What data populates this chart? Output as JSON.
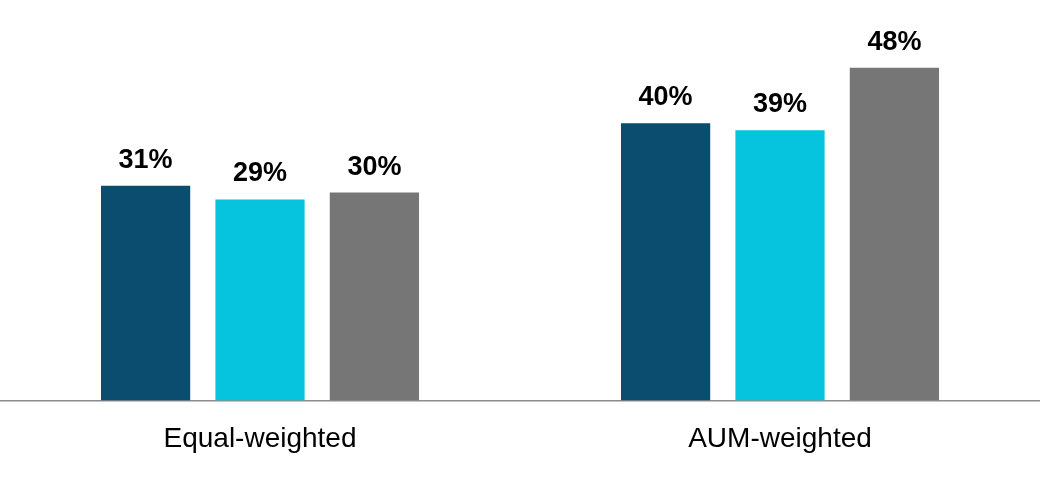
{
  "chart_data": {
    "type": "bar",
    "categories": [
      "Equal-weighted",
      "AUM-weighted"
    ],
    "series": [
      {
        "color": "#0a4d6e",
        "values": [
          31,
          40
        ],
        "value_labels": [
          "31%",
          "40%"
        ]
      },
      {
        "color": "#06c3de",
        "values": [
          29,
          39
        ],
        "value_labels": [
          "29%",
          "39%"
        ]
      },
      {
        "color": "#767676",
        "values": [
          30,
          48
        ],
        "value_labels": [
          "30%",
          "48%"
        ]
      }
    ],
    "grid": false,
    "legend": false,
    "tick_labels": "x"
  }
}
